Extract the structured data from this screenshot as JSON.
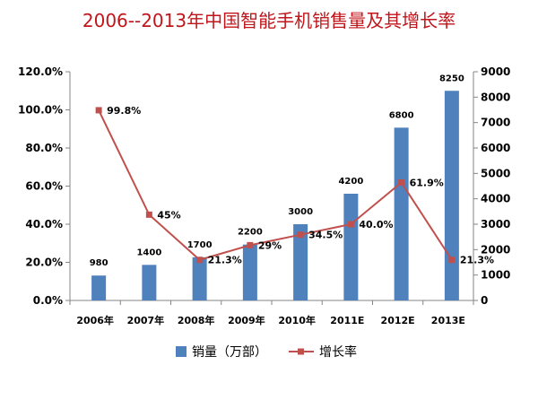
{
  "chart_data": {
    "type": "bar",
    "title": "2006--2013年中国智能手机销售量及其增长率",
    "categories": [
      "2006年",
      "2007年",
      "2008年",
      "2009年",
      "2010年",
      "2011E",
      "2012E",
      "2013E"
    ],
    "series": [
      {
        "name": "销量（万部）",
        "type": "bar",
        "axis": "right",
        "color": "#4f81bd",
        "values": [
          980,
          1400,
          1700,
          2200,
          3000,
          4200,
          6800,
          8250
        ],
        "labels": [
          "980",
          "1400",
          "1700",
          "2200",
          "3000",
          "4200",
          "6800",
          "8250"
        ]
      },
      {
        "name": "增长率",
        "type": "line",
        "axis": "left",
        "color": "#c0504d",
        "values": [
          99.8,
          45,
          21.3,
          29,
          34.5,
          40.0,
          61.9,
          21.3
        ],
        "labels": [
          "99.8%",
          "45%",
          "21.3%",
          "29%",
          "34.5%",
          "40.0%",
          "61.9%",
          "21.3%"
        ]
      }
    ],
    "y_left": {
      "min": 0,
      "max": 120,
      "step": 20,
      "tick_labels": [
        "0.0%",
        "20.0%",
        "40.0%",
        "60.0%",
        "80.0%",
        "100.0%",
        "120.0%"
      ]
    },
    "y_right": {
      "min": 0,
      "max": 9000,
      "step": 1000,
      "tick_labels": [
        "0",
        "1000",
        "2000",
        "3000",
        "4000",
        "5000",
        "6000",
        "7000",
        "8000",
        "9000"
      ]
    },
    "grid": false,
    "legend": "bottom"
  }
}
